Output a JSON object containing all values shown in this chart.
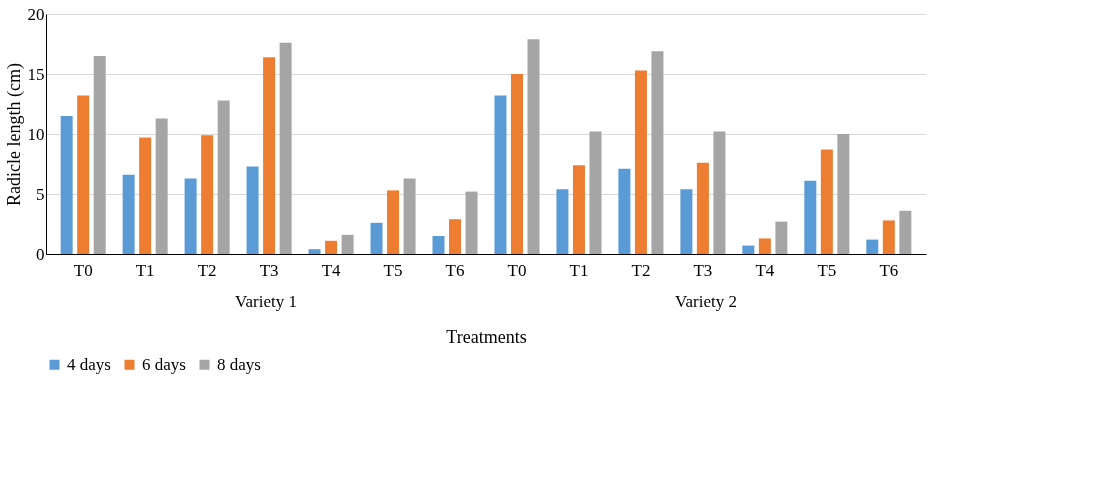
{
  "chart_data": {
    "type": "bar",
    "xlabel": "Treatments",
    "ylabel": "Radicle length (cm)",
    "categories": [
      "T0",
      "T1",
      "T2",
      "T3",
      "T4",
      "T5",
      "T6",
      "T0",
      "T1",
      "T2",
      "T3",
      "T4",
      "T5",
      "T6"
    ],
    "series": [
      {
        "name": "4 days",
        "color": "#5b9bd5",
        "values": [
          11.5,
          6.6,
          6.3,
          7.3,
          0.4,
          2.6,
          1.5,
          13.2,
          5.4,
          7.1,
          5.4,
          0.7,
          6.1,
          1.2
        ]
      },
      {
        "name": "6 days",
        "color": "#ed7d31",
        "values": [
          13.2,
          9.7,
          9.9,
          16.4,
          1.1,
          5.3,
          2.9,
          15.0,
          7.4,
          15.3,
          7.6,
          1.3,
          8.7,
          2.8
        ]
      },
      {
        "name": "8 days",
        "color": "#a5a5a5",
        "values": [
          16.5,
          11.3,
          12.8,
          17.6,
          1.6,
          6.3,
          5.2,
          17.9,
          10.2,
          16.9,
          10.2,
          2.7,
          10.0,
          3.6
        ]
      }
    ],
    "ylim": [
      0,
      20
    ],
    "yticks": [
      0,
      5,
      10,
      15,
      20
    ],
    "grid": "y",
    "legend": "bottom",
    "annotations": [
      "Variety 1",
      "Variety 2"
    ]
  }
}
